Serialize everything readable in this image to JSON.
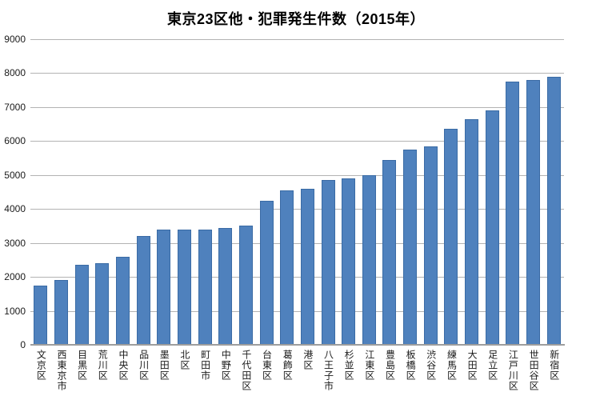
{
  "chart_data": {
    "type": "bar",
    "title": "東京23区他・犯罪発生件数（2015年）",
    "categories": [
      "文京区",
      "西東京市",
      "目黒区",
      "荒川区",
      "中央区",
      "品川区",
      "墨田区",
      "北区",
      "町田市",
      "中野区",
      "千代田区",
      "台東区",
      "葛飾区",
      "港区",
      "八王子市",
      "杉並区",
      "江東区",
      "豊島区",
      "板橋区",
      "渋谷区",
      "練馬区",
      "大田区",
      "足立区",
      "江戸川区",
      "世田谷区",
      "新宿区"
    ],
    "values": [
      1750,
      1900,
      2350,
      2400,
      2600,
      3200,
      3400,
      3400,
      3400,
      3450,
      3500,
      4250,
      4550,
      4600,
      4850,
      4900,
      5000,
      5450,
      5750,
      5850,
      6350,
      6650,
      6900,
      7750,
      7800,
      7900
    ],
    "xlabel": "",
    "ylabel": "",
    "ylim": [
      0,
      9000
    ],
    "ytick_step": 1000,
    "yticks": [
      0,
      1000,
      2000,
      3000,
      4000,
      5000,
      6000,
      7000,
      8000,
      9000
    ],
    "grid": true,
    "legend_position": "none",
    "bar_color": "#4f81bd",
    "bar_border_color": "#3a6ba5",
    "gridline_color": "#b3b3b3",
    "axis_line_color": "#9d9d9d",
    "text_color": "#1a1a1a"
  }
}
